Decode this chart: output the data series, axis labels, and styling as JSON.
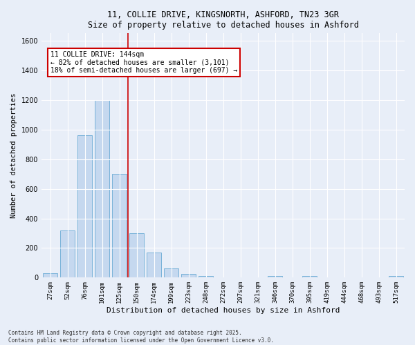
{
  "title_line1": "11, COLLIE DRIVE, KINGSNORTH, ASHFORD, TN23 3GR",
  "title_line2": "Size of property relative to detached houses in Ashford",
  "xlabel": "Distribution of detached houses by size in Ashford",
  "ylabel": "Number of detached properties",
  "footnote1": "Contains HM Land Registry data © Crown copyright and database right 2025.",
  "footnote2": "Contains public sector information licensed under the Open Government Licence v3.0.",
  "bar_color": "#c5d8ef",
  "bar_edge_color": "#6aaad4",
  "background_color": "#e8eef8",
  "fig_background_color": "#e8eef8",
  "grid_color": "#ffffff",
  "vline_color": "#cc0000",
  "annotation_text": "11 COLLIE DRIVE: 144sqm\n← 82% of detached houses are smaller (3,101)\n18% of semi-detached houses are larger (697) →",
  "annotation_box_edgecolor": "#cc0000",
  "ylim": [
    0,
    1650
  ],
  "yticks": [
    0,
    200,
    400,
    600,
    800,
    1000,
    1200,
    1400,
    1600
  ],
  "categories": [
    "27sqm",
    "52sqm",
    "76sqm",
    "101sqm",
    "125sqm",
    "150sqm",
    "174sqm",
    "199sqm",
    "223sqm",
    "248sqm",
    "272sqm",
    "297sqm",
    "321sqm",
    "346sqm",
    "370sqm",
    "395sqm",
    "419sqm",
    "444sqm",
    "468sqm",
    "493sqm",
    "517sqm"
  ],
  "values": [
    30,
    320,
    960,
    1200,
    700,
    300,
    170,
    60,
    25,
    10,
    0,
    0,
    0,
    10,
    0,
    10,
    0,
    0,
    0,
    0,
    10
  ]
}
